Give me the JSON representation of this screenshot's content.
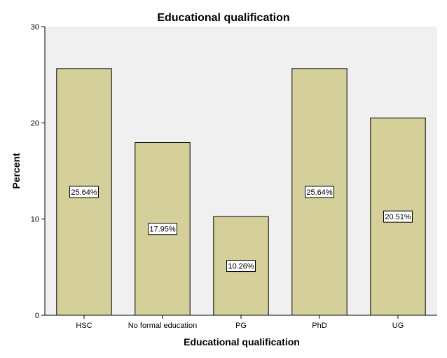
{
  "chart_data": {
    "type": "bar",
    "title": "Educational qualification",
    "xlabel": "Educational qualification",
    "ylabel": "Percent",
    "categories": [
      "HSC",
      "No formal education",
      "PG",
      "PhD",
      "UG"
    ],
    "values": [
      25.64,
      17.95,
      10.26,
      25.64,
      20.51
    ],
    "data_labels": [
      "25.64%",
      "17.95%",
      "10.26%",
      "25.64%",
      "20.51%"
    ],
    "ylim": [
      0,
      30
    ],
    "yticks": [
      0,
      10,
      20,
      30
    ],
    "grid": false,
    "legend": "none",
    "colors": {
      "bar_fill": "#d5d09a",
      "bar_stroke": "#000000",
      "plot_background": "#f0f0f0",
      "label_box_fill": "#ffffff"
    }
  }
}
